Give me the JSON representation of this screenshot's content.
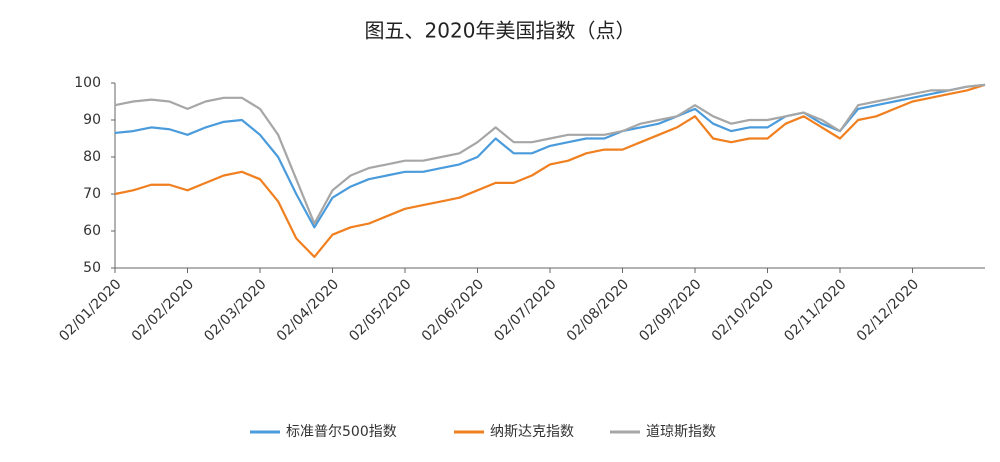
{
  "chart_data": {
    "type": "line",
    "title": "图五、2020年美国指数（点）",
    "categories": [
      "02/01/2020",
      null,
      null,
      null,
      "02/02/2020",
      null,
      null,
      null,
      "02/03/2020",
      null,
      null,
      null,
      "02/04/2020",
      null,
      null,
      null,
      "02/05/2020",
      null,
      null,
      null,
      "02/06/2020",
      null,
      null,
      null,
      "02/07/2020",
      null,
      null,
      null,
      "02/08/2020",
      null,
      null,
      null,
      "02/09/2020",
      null,
      null,
      null,
      "02/10/2020",
      null,
      null,
      null,
      "02/11/2020",
      null,
      null,
      null,
      "02/12/2020",
      null,
      null,
      null,
      null
    ],
    "series": [
      {
        "name": "标准普尔500指数",
        "color": "#4a9bdc",
        "values": [
          86.5,
          87,
          88,
          87.5,
          86,
          88,
          89.5,
          90,
          86,
          80,
          70,
          61,
          69,
          72,
          74,
          75,
          76,
          76,
          77,
          78,
          80,
          85,
          81,
          81,
          83,
          84,
          85,
          85,
          87,
          88,
          89,
          91,
          93,
          89,
          87,
          88,
          88,
          91,
          92,
          89,
          87,
          93,
          94,
          95,
          96,
          97,
          98,
          99,
          99.5
        ]
      },
      {
        "name": "纳斯达克指数",
        "color": "#f07f1f",
        "values": [
          70,
          71,
          72.5,
          72.5,
          71,
          73,
          75,
          76,
          74,
          68,
          58,
          53,
          59,
          61,
          62,
          64,
          66,
          67,
          68,
          69,
          71,
          73,
          73,
          75,
          78,
          79,
          81,
          82,
          82,
          84,
          86,
          88,
          91,
          85,
          84,
          85,
          85,
          89,
          91,
          88,
          85,
          90,
          91,
          93,
          95,
          96,
          97,
          98,
          99.5
        ]
      },
      {
        "name": "道琼斯指数",
        "color": "#a6a6a6",
        "values": [
          94,
          95,
          95.5,
          95,
          93,
          95,
          96,
          96,
          93,
          86,
          74,
          62,
          71,
          75,
          77,
          78,
          79,
          79,
          80,
          81,
          84,
          88,
          84,
          84,
          85,
          86,
          86,
          86,
          87,
          89,
          90,
          91,
          94,
          91,
          89,
          90,
          90,
          91,
          92,
          90,
          87,
          94,
          95,
          96,
          97,
          98,
          98,
          99,
          99.5
        ]
      }
    ],
    "ylim": [
      50,
      100
    ],
    "yticks": [
      50,
      60,
      70,
      80,
      90,
      100
    ],
    "grid": false,
    "legend": "bottom"
  }
}
